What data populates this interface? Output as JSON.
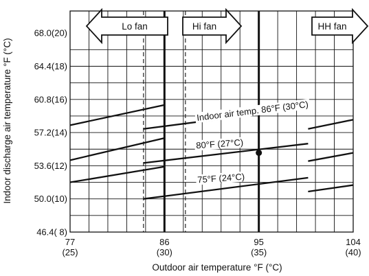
{
  "chart_data": {
    "type": "line",
    "xlabel": "Outdoor air temperature °F (°C)",
    "ylabel": "Indoor discharge air temperature °F (°C)",
    "xlim": [
      77,
      104
    ],
    "ylim": [
      46.4,
      70.4
    ],
    "x_ticks": [
      {
        "value": 77,
        "label_f": "77",
        "label_c": "(25)"
      },
      {
        "value": 86,
        "label_f": "86",
        "label_c": "(30)"
      },
      {
        "value": 95,
        "label_f": "95",
        "label_c": "(35)"
      },
      {
        "value": 104,
        "label_f": "104",
        "label_c": "(40)"
      }
    ],
    "y_ticks": [
      {
        "value": 46.4,
        "label": "46.4(  8)"
      },
      {
        "value": 50.0,
        "label": "50.0(10)"
      },
      {
        "value": 53.6,
        "label": "53.6(12)"
      },
      {
        "value": 57.2,
        "label": "57.2(14)"
      },
      {
        "value": 60.8,
        "label": "60.8(16)"
      },
      {
        "value": 64.4,
        "label": "64.4(18)"
      },
      {
        "value": 68.0,
        "label": "68.0(20)"
      }
    ],
    "grid": true,
    "series": [
      {
        "name": "Indoor air temp. 86°F (30°C)",
        "segments": [
          [
            [
              77,
              58.0
            ],
            [
              86,
              60.2
            ]
          ],
          [
            [
              84.0,
              57.6
            ],
            [
              99.7,
              59.9
            ]
          ],
          [
            [
              99.7,
              57.6
            ],
            [
              104,
              58.6
            ]
          ]
        ]
      },
      {
        "name": "80°F (27°C)",
        "segments": [
          [
            [
              77,
              54.2
            ],
            [
              86,
              56.6
            ]
          ],
          [
            [
              84.0,
              53.9
            ],
            [
              99.7,
              56.0
            ]
          ],
          [
            [
              99.7,
              54.1
            ],
            [
              104,
              55.0
            ]
          ]
        ]
      },
      {
        "name": "75°F (24°C)",
        "segments": [
          [
            [
              77,
              51.8
            ],
            [
              86,
              53.5
            ]
          ],
          [
            [
              84.0,
              50.0
            ],
            [
              99.7,
              52.3
            ]
          ],
          [
            [
              99.7,
              50.8
            ],
            [
              104,
              51.5
            ]
          ]
        ]
      }
    ],
    "vertical_lines": [
      {
        "x": 84.0,
        "style": "dashed"
      },
      {
        "x": 86.0,
        "style": "bold"
      },
      {
        "x": 88.0,
        "style": "dashed"
      },
      {
        "x": 95.0,
        "style": "bold"
      }
    ],
    "marked_point": {
      "x": 95,
      "y": 55.0
    },
    "fan_ranges": [
      {
        "label": "Lo fan",
        "direction": "left"
      },
      {
        "label": "Hi fan",
        "direction": "right"
      },
      {
        "label": "HH fan",
        "direction": "right"
      }
    ]
  }
}
